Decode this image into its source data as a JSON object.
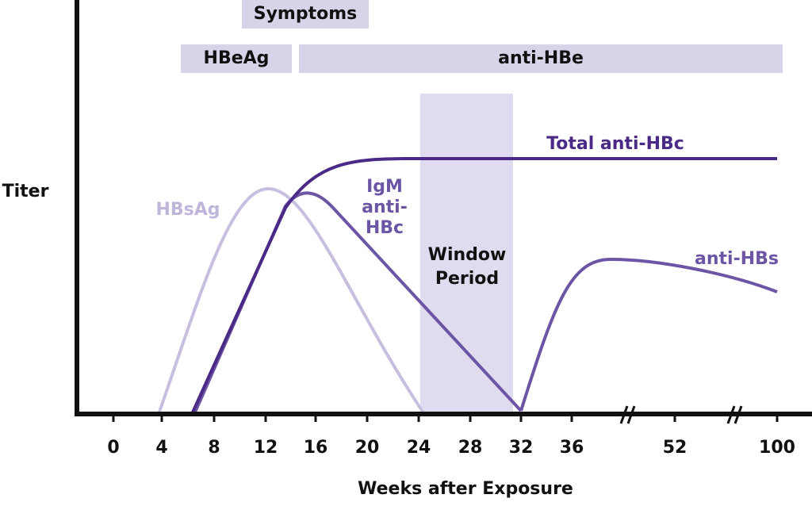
{
  "y_axis_label": "Titer",
  "x_axis_label": "Weeks after Exposure",
  "x_tick_labels": [
    "0",
    "4",
    "8",
    "12",
    "16",
    "20",
    "24",
    "28",
    "32",
    "36",
    "52",
    "100"
  ],
  "bars": {
    "symptoms": "Symptoms",
    "hbeag": "HBeAg",
    "anti_hbe": "anti-HBe",
    "window": [
      "Window",
      "Period"
    ]
  },
  "curves": {
    "hbsag": "HBsAg",
    "igm_anti_hbc": [
      "IgM",
      "anti-",
      "HBc"
    ],
    "total_anti_hbc": "Total anti-HBc",
    "anti_hbs": "anti-HBs"
  }
}
